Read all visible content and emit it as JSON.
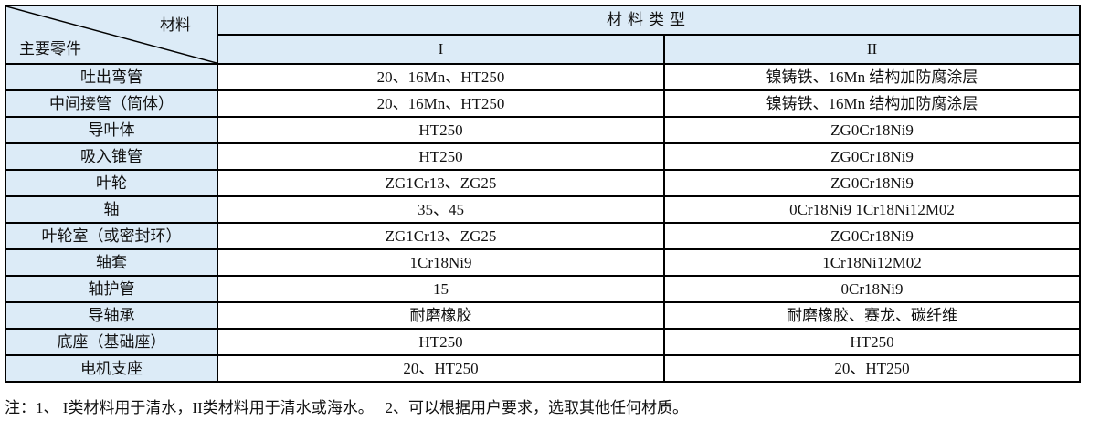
{
  "header": {
    "corner_top": "材料",
    "corner_bottom": "主要零件",
    "group_title": "材料类型",
    "col1": "I",
    "col2": "II"
  },
  "rows": [
    {
      "part": "吐出弯管",
      "c1": "20、16Mn、HT250",
      "c2": "镍铸铁、16Mn 结构加防腐涂层"
    },
    {
      "part": "中间接管（筒体）",
      "c1": "20、16Mn、HT250",
      "c2": "镍铸铁、16Mn 结构加防腐涂层"
    },
    {
      "part": "导叶体",
      "c1": "HT250",
      "c2": "ZG0Cr18Ni9"
    },
    {
      "part": "吸入锥管",
      "c1": "HT250",
      "c2": "ZG0Cr18Ni9"
    },
    {
      "part": "叶轮",
      "c1": "ZG1Cr13、ZG25",
      "c2": "ZG0Cr18Ni9"
    },
    {
      "part": "轴",
      "c1": "35、45",
      "c2": "0Cr18Ni9 1Cr18Ni12M02"
    },
    {
      "part": "叶轮室（或密封环）",
      "c1": "ZG1Cr13、ZG25",
      "c2": "ZG0Cr18Ni9"
    },
    {
      "part": "轴套",
      "c1": "1Cr18Ni9",
      "c2": "1Cr18Ni12M02"
    },
    {
      "part": "轴护管",
      "c1": "15",
      "c2": "0Cr18Ni9"
    },
    {
      "part": "导轴承",
      "c1": "耐磨橡胶",
      "c2": "耐磨橡胶、赛龙、碳纤维"
    },
    {
      "part": "底座（基础座）",
      "c1": "HT250",
      "c2": "HT250"
    },
    {
      "part": "电机支座",
      "c1": "20、HT250",
      "c2": "20、HT250"
    }
  ],
  "note": "注：1、 I类材料用于清水，II类材料用于清水或海水。   2、可以根据用户要求，选取其他任何材质。",
  "colors": {
    "header_bg": "#dcebf7",
    "border": "#000000"
  }
}
